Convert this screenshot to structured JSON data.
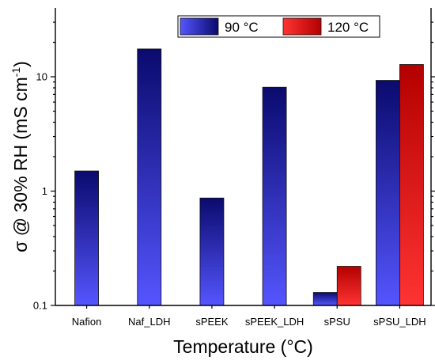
{
  "chart_data": {
    "type": "bar",
    "categories": [
      "Nafion",
      "Naf_LDH",
      "sPEEK",
      "sPEEK_LDH",
      "sPSU",
      "sPSU_LDH"
    ],
    "series": [
      {
        "name": "90 °C",
        "values": [
          1.5,
          17.5,
          0.87,
          8.1,
          0.13,
          9.3
        ],
        "color_top": "#0a0a6e",
        "color_bottom": "#5555ff"
      },
      {
        "name": "120 °C",
        "values": [
          null,
          null,
          null,
          null,
          0.22,
          12.8
        ],
        "color_top": "#b40000",
        "color_bottom": "#ff3333"
      }
    ],
    "xlabel": "Temperature (°C)",
    "ylabel": "σ @ 30% RH (mS cm",
    "ylabel_superscript": "-1",
    "ylabel_suffix": ")",
    "yscale": "log",
    "ylim": [
      0.1,
      40
    ],
    "yticks": [
      0.1,
      1,
      10
    ],
    "ytick_labels": [
      "0.1",
      "1",
      "10"
    ],
    "grid": false,
    "legend_position": "top-right"
  }
}
